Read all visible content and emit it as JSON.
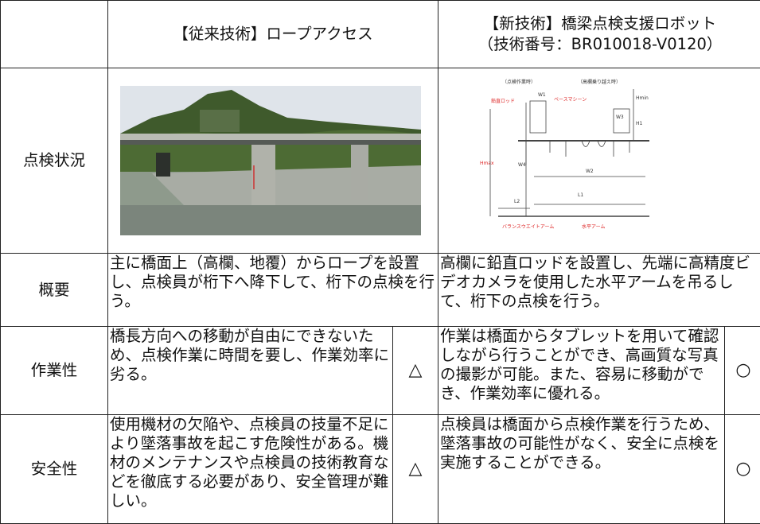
{
  "header": {
    "conventional": "【従来技術】ロープアクセス",
    "new_line1": "【新技術】橋梁点検支援ロボット",
    "new_line2": "（技術番号：BR010018-V0120）"
  },
  "rows": [
    {
      "label": "点検状況",
      "diagram": {
        "mode1": "（点検作業時）",
        "mode2": "（高欄乗り越え時）",
        "rod": "鉛直ロッド",
        "base": "ベースマシーン",
        "w1": "W1",
        "hmin": "Hmin",
        "w3": "W3",
        "h1": "H1",
        "hmax": "Hmax",
        "w4": "W4",
        "w2": "W2",
        "l2": "L2",
        "l1": "L1",
        "balance": "バランスウエイトアーム",
        "arm": "水平アーム"
      }
    },
    {
      "label": "概要",
      "conventional": "主に橋面上（高欄、地覆）からロープを設置し、点検員が桁下へ降下して、桁下の点検を行う。",
      "new": "高欄に鉛直ロッドを設置し、先端に高精度ビデオカメラを使用した水平アームを吊るして、桁下の点検を行う。"
    },
    {
      "label": "作業性",
      "conventional": "橋長方向への移動が自由にできないため、点検作業に時間を要し、作業効率に劣る。",
      "conventional_rating": "△",
      "new": "作業は橋面からタブレットを用いて確認しながら行うことができ、高画質な写真の撮影が可能。また、容易に移動ができ、作業効率に優れる。",
      "new_rating": "○"
    },
    {
      "label": "安全性",
      "conventional": "使用機材の欠陥や、点検員の技量不足により墜落事故を起こす危険性がある。機材のメンテナンスや点検員の技術教育などを徹底する必要があり、安全管理が難しい。",
      "conventional_rating": "△",
      "new": "点検員は橋面から点検作業を行うため、墜落事故の可能性がなく、安全に点検を実施することができる。",
      "new_rating": "○"
    }
  ]
}
